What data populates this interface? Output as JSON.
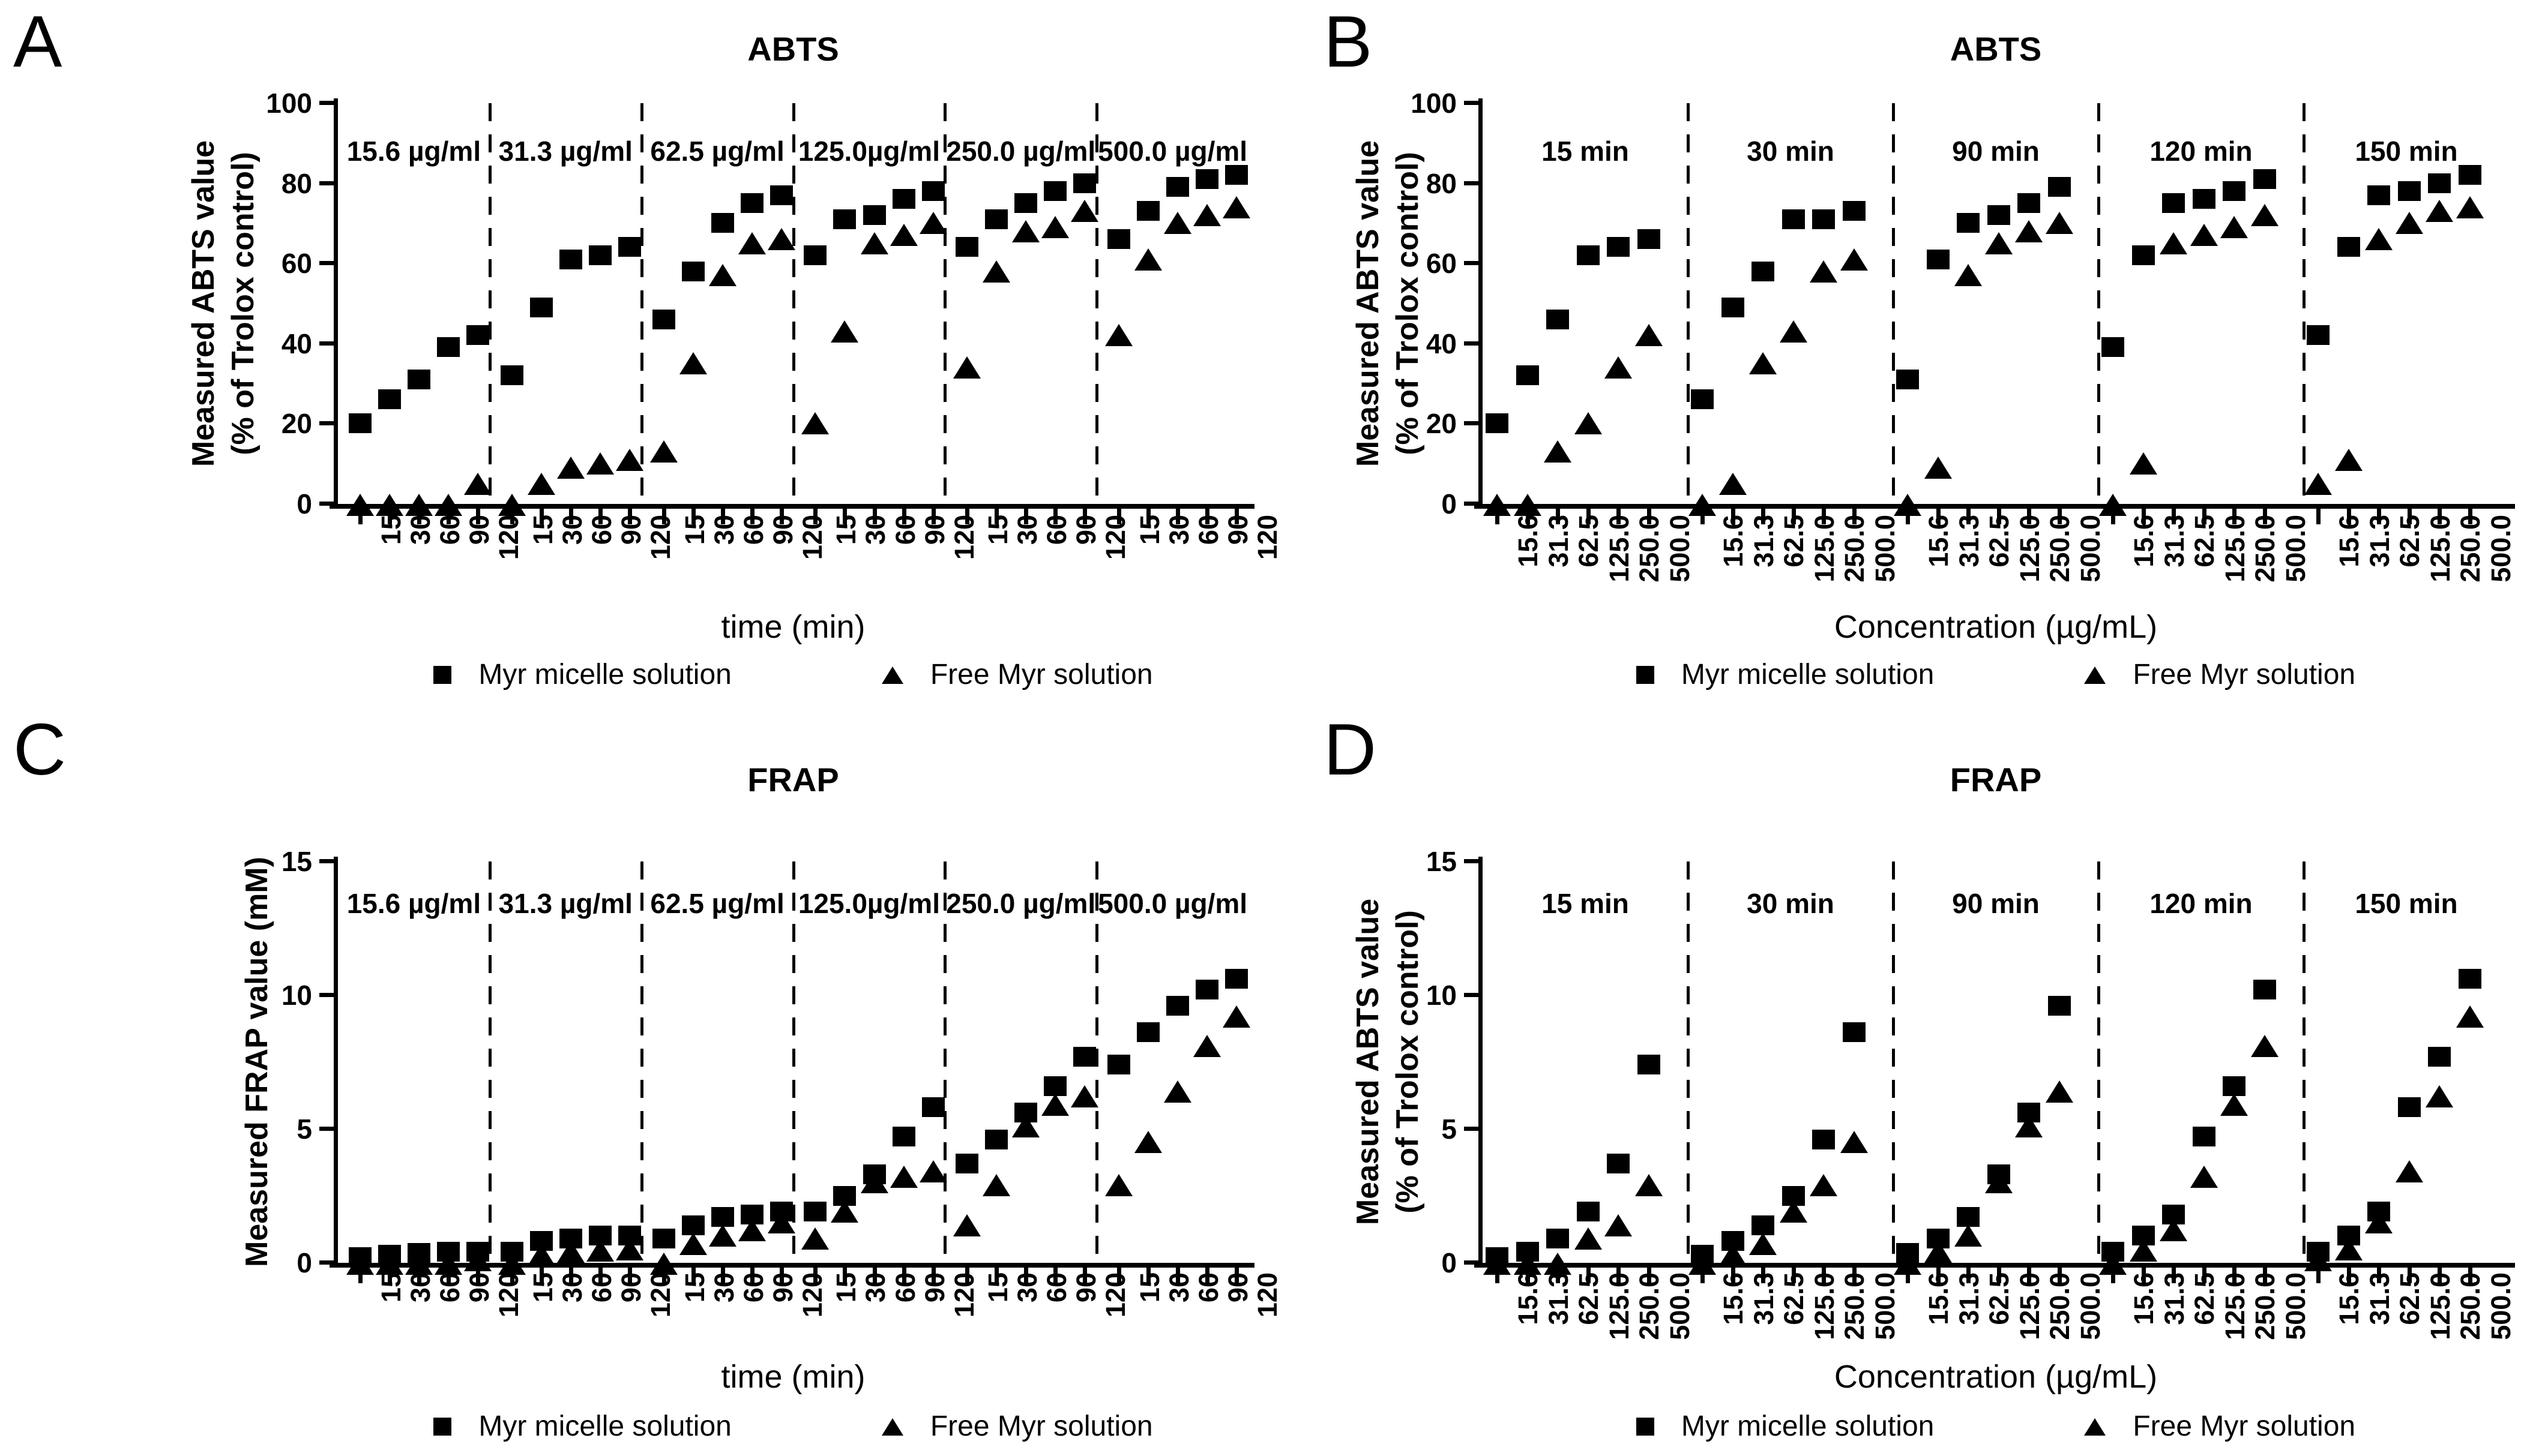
{
  "figure": {
    "background": "#ffffff",
    "ink": "#000000"
  },
  "legend": {
    "micelle": "Myr micelle solution",
    "free": "Free Myr solution"
  },
  "chart_data": [
    {
      "panel": "A",
      "type": "scatter",
      "title": "ABTS",
      "ylabel_lines": [
        "Measured ABTS value",
        "(% of Trolox control)"
      ],
      "xlabel": "time (min)",
      "ylim": [
        0,
        100
      ],
      "yticks": [
        100,
        80,
        60,
        40,
        20,
        0
      ],
      "grid": false,
      "legend_position": "bottom",
      "groups": [
        "15.6 µg/ml",
        "31.3 µg/ml",
        "62.5 µg/ml",
        "125.0µg/ml",
        "250.0 µg/ml",
        "500.0 µg/ml"
      ],
      "xticklabels": [
        "15",
        "30",
        "60",
        "90",
        "120"
      ],
      "series": [
        {
          "name": "Myr micelle solution",
          "marker": "square",
          "values": [
            [
              20,
              26,
              31,
              39,
              42
            ],
            [
              32,
              49,
              61,
              62,
              64
            ],
            [
              46,
              58,
              70,
              75,
              77
            ],
            [
              62,
              71,
              72,
              76,
              78
            ],
            [
              64,
              71,
              75,
              78,
              80
            ],
            [
              66,
              73,
              79,
              81,
              82
            ]
          ]
        },
        {
          "name": "Free Myr solution",
          "marker": "triangle",
          "values": [
            [
              0,
              0,
              0,
              0,
              5
            ],
            [
              0,
              5,
              9,
              10,
              11
            ],
            [
              13,
              35,
              57,
              65,
              66
            ],
            [
              20,
              43,
              65,
              67,
              70
            ],
            [
              34,
              58,
              68,
              69,
              73
            ],
            [
              42,
              61,
              70,
              72,
              74
            ]
          ]
        }
      ]
    },
    {
      "panel": "B",
      "type": "scatter",
      "title": "ABTS",
      "ylabel_lines": [
        "Measured ABTS value",
        "(% of Trolox control)"
      ],
      "xlabel": "Concentration (µg/mL)",
      "ylim": [
        0,
        100
      ],
      "yticks": [
        100,
        80,
        60,
        40,
        20,
        0
      ],
      "grid": false,
      "legend_position": "bottom",
      "groups": [
        "15 min",
        "30 min",
        "90 min",
        "120 min",
        "150 min"
      ],
      "xticklabels": [
        "15.6",
        "31.3",
        "62.5",
        "125.0",
        "250.0",
        "500.0"
      ],
      "series": [
        {
          "name": "Myr micelle solution",
          "marker": "square",
          "values": [
            [
              20,
              32,
              46,
              62,
              64,
              66
            ],
            [
              26,
              49,
              58,
              71,
              71,
              73
            ],
            [
              31,
              61,
              70,
              72,
              75,
              79
            ],
            [
              39,
              62,
              75,
              76,
              78,
              81
            ],
            [
              42,
              64,
              77,
              78,
              80,
              82
            ]
          ]
        },
        {
          "name": "Free Myr solution",
          "marker": "triangle",
          "values": [
            [
              0,
              0,
              13,
              20,
              34,
              42
            ],
            [
              0,
              5,
              35,
              43,
              58,
              61
            ],
            [
              0,
              9,
              57,
              65,
              68,
              70
            ],
            [
              0,
              10,
              65,
              67,
              69,
              72
            ],
            [
              5,
              11,
              66,
              70,
              73,
              74
            ]
          ]
        }
      ]
    },
    {
      "panel": "C",
      "type": "scatter",
      "title": "FRAP",
      "ylabel_lines": [
        "Measured FRAP value (mM)"
      ],
      "xlabel": "time (min)",
      "ylim": [
        0,
        15
      ],
      "yticks": [
        15,
        10,
        5,
        0
      ],
      "grid": false,
      "legend_position": "bottom",
      "groups": [
        "15.6 µg/ml",
        "31.3 µg/ml",
        "62.5 µg/ml",
        "125.0µg/ml",
        "250.0 µg/ml",
        "500.0 µg/ml"
      ],
      "xticklabels": [
        "15",
        "30",
        "60",
        "90",
        "120"
      ],
      "series": [
        {
          "name": "Myr micelle solution",
          "marker": "square",
          "values": [
            [
              0.2,
              0.3,
              0.35,
              0.4,
              0.4
            ],
            [
              0.4,
              0.8,
              0.9,
              1.0,
              1.0
            ],
            [
              0.9,
              1.4,
              1.7,
              1.8,
              1.9
            ],
            [
              1.9,
              2.5,
              3.3,
              4.7,
              5.8
            ],
            [
              3.7,
              4.6,
              5.6,
              6.6,
              7.7
            ],
            [
              7.4,
              8.6,
              9.6,
              10.2,
              10.6
            ]
          ]
        },
        {
          "name": "Free Myr solution",
          "marker": "triangle",
          "values": [
            [
              0,
              0,
              0,
              0.05,
              0.1
            ],
            [
              0,
              0.3,
              0.4,
              0.45,
              0.5
            ],
            [
              0,
              0.7,
              1.0,
              1.2,
              1.5
            ],
            [
              0.9,
              1.9,
              3.0,
              3.2,
              3.4
            ],
            [
              1.4,
              2.9,
              5.1,
              5.9,
              6.2
            ],
            [
              2.9,
              4.5,
              6.4,
              8.1,
              9.2
            ]
          ]
        }
      ]
    },
    {
      "panel": "D",
      "type": "scatter",
      "title": "FRAP",
      "ylabel_lines": [
        "Measured ABTS value",
        "(% of Trolox control)"
      ],
      "xlabel": "Concentration (µg/mL)",
      "ylim": [
        0,
        15
      ],
      "yticks": [
        15,
        10,
        5,
        0
      ],
      "grid": false,
      "legend_position": "bottom",
      "groups": [
        "15 min",
        "30 min",
        "90 min",
        "120 min",
        "150 min"
      ],
      "xticklabels": [
        "15.6",
        "31.3",
        "62.5",
        "125.0",
        "250.0",
        "500.0"
      ],
      "series": [
        {
          "name": "Myr micelle solution",
          "marker": "square",
          "values": [
            [
              0.2,
              0.4,
              0.9,
              1.9,
              3.7,
              7.4
            ],
            [
              0.3,
              0.8,
              1.4,
              2.5,
              4.6,
              8.6
            ],
            [
              0.35,
              0.9,
              1.7,
              3.3,
              5.6,
              9.6
            ],
            [
              0.4,
              1.0,
              1.8,
              4.7,
              6.6,
              10.2
            ],
            [
              0.4,
              1.0,
              1.9,
              5.8,
              7.7,
              10.6
            ]
          ]
        },
        {
          "name": "Free Myr solution",
          "marker": "triangle",
          "values": [
            [
              0,
              0,
              0,
              0.9,
              1.4,
              2.9
            ],
            [
              0,
              0.3,
              0.7,
              1.9,
              2.9,
              4.5
            ],
            [
              0,
              0.4,
              1.0,
              3.0,
              5.1,
              6.4
            ],
            [
              0.05,
              0.45,
              1.2,
              3.2,
              5.9,
              8.1
            ],
            [
              0.1,
              0.5,
              1.5,
              3.4,
              6.2,
              9.2
            ]
          ]
        }
      ]
    }
  ]
}
